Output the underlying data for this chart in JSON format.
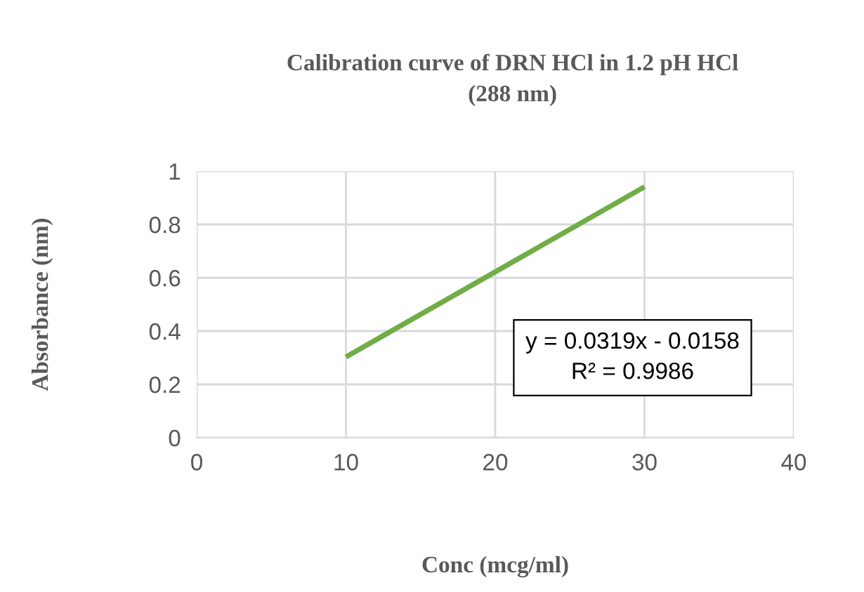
{
  "chart_data": {
    "type": "line",
    "title": "Calibration curve of DRN HCl in 1.2 pH HCl\n(288 nm)",
    "xlabel": "Conc (mcg/ml)",
    "ylabel": "Absorbance (nm)",
    "x": [
      10,
      30
    ],
    "series": [
      {
        "color": "#70ad47",
        "values": [
          0.303,
          0.941
        ]
      }
    ],
    "xlim": [
      0,
      40
    ],
    "xticks": [
      0,
      10,
      20,
      30,
      40
    ],
    "ylim": [
      0,
      1
    ],
    "yticks": [
      0,
      0.2,
      0.4,
      0.6,
      0.8,
      1
    ],
    "grid": true,
    "marker": "none",
    "line_style": "solid",
    "annotations": [
      "y = 0.0319x - 0.0158\nR² = 0.9986"
    ]
  }
}
